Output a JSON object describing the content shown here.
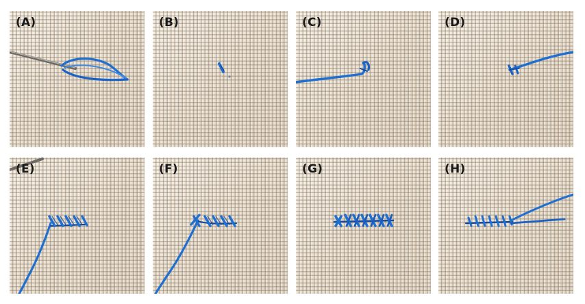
{
  "panels": [
    {
      "label": "(A)"
    },
    {
      "label": "(B)"
    },
    {
      "label": "(C)"
    },
    {
      "label": "(D)"
    },
    {
      "label": "(E)"
    },
    {
      "label": "(F)"
    },
    {
      "label": "(G)"
    },
    {
      "label": "(H)"
    }
  ],
  "colors": {
    "thread": "#1f6fd1",
    "thread_dark": "#124a9e",
    "needle": "#6d6a66",
    "background": "#ffffff"
  }
}
